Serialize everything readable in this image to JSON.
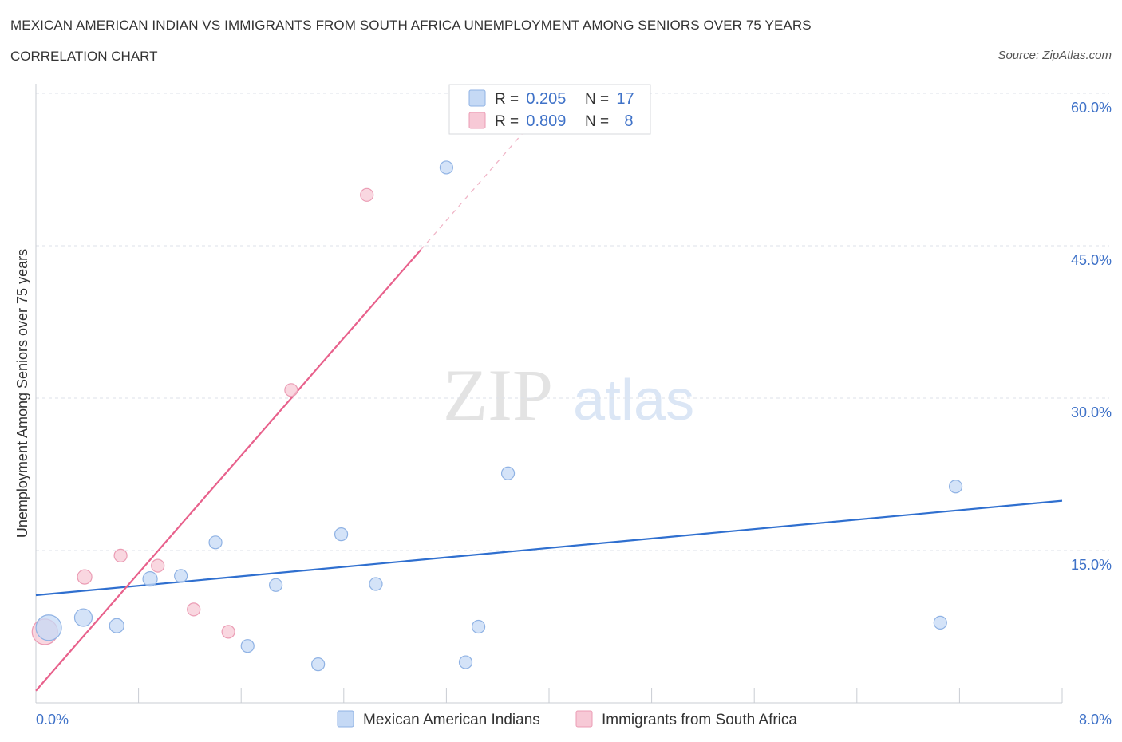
{
  "title": "MEXICAN AMERICAN INDIAN VS IMMIGRANTS FROM SOUTH AFRICA UNEMPLOYMENT AMONG SENIORS OVER 75 YEARS",
  "subtitle": "CORRELATION CHART",
  "source": "Source: ZipAtlas.com",
  "watermark": {
    "zip": "ZIP",
    "atlas": "atlas"
  },
  "colors": {
    "blue_fill": "#c5d9f5",
    "blue_stroke": "#8fb2e4",
    "blue_line": "#2f6fcf",
    "pink_fill": "#f7c9d6",
    "pink_stroke": "#eb9cb4",
    "pink_line": "#e8618c",
    "axis_text": "#3f72c8",
    "grid": "#dde1e8"
  },
  "legend": {
    "series1": {
      "r_label": "R = ",
      "r_value": "0.205",
      "n_label": "N = ",
      "n_value": "17"
    },
    "series2": {
      "r_label": "R = ",
      "r_value": "0.809",
      "n_label": "N = ",
      "n_value": "8"
    }
  },
  "chart_data": {
    "type": "scatter",
    "title": "MEXICAN AMERICAN INDIAN VS IMMIGRANTS FROM SOUTH AFRICA UNEMPLOYMENT AMONG SENIORS OVER 75 YEARS",
    "xlabel": "",
    "ylabel": "Unemployment Among Seniors over 75 years",
    "xlim": [
      0,
      8
    ],
    "ylim": [
      0,
      60
    ],
    "x_tick_labels": [
      "0.0%",
      "8.0%"
    ],
    "y_tick_labels": [
      "15.0%",
      "30.0%",
      "45.0%",
      "60.0%"
    ],
    "y_ticks": [
      15,
      30,
      45,
      60
    ],
    "series": [
      {
        "name": "Mexican American Indians",
        "color": "#8fb2e4",
        "points": [
          {
            "x": 0.1,
            "y": 7.4,
            "size": 16
          },
          {
            "x": 0.37,
            "y": 8.4,
            "size": 11
          },
          {
            "x": 0.63,
            "y": 7.6,
            "size": 9
          },
          {
            "x": 0.89,
            "y": 12.2,
            "size": 9
          },
          {
            "x": 1.13,
            "y": 12.5,
            "size": 8
          },
          {
            "x": 1.4,
            "y": 15.8,
            "size": 8
          },
          {
            "x": 1.65,
            "y": 5.6,
            "size": 8
          },
          {
            "x": 1.87,
            "y": 11.6,
            "size": 8
          },
          {
            "x": 2.2,
            "y": 3.8,
            "size": 8
          },
          {
            "x": 2.38,
            "y": 16.6,
            "size": 8
          },
          {
            "x": 2.65,
            "y": 11.7,
            "size": 8
          },
          {
            "x": 3.2,
            "y": 52.7,
            "size": 8
          },
          {
            "x": 3.35,
            "y": 4.0,
            "size": 8
          },
          {
            "x": 3.45,
            "y": 7.5,
            "size": 8
          },
          {
            "x": 3.68,
            "y": 22.6,
            "size": 8
          },
          {
            "x": 7.05,
            "y": 7.9,
            "size": 8
          },
          {
            "x": 7.17,
            "y": 21.3,
            "size": 8
          }
        ],
        "trend": {
          "x1": 0.0,
          "y1": 10.6,
          "x2": 8.0,
          "y2": 19.9
        }
      },
      {
        "name": "Immigrants from South Africa",
        "color": "#eb9cb4",
        "points": [
          {
            "x": 0.07,
            "y": 7.0,
            "size": 16
          },
          {
            "x": 0.38,
            "y": 12.4,
            "size": 9
          },
          {
            "x": 0.66,
            "y": 14.5,
            "size": 8
          },
          {
            "x": 0.95,
            "y": 13.5,
            "size": 8
          },
          {
            "x": 1.23,
            "y": 9.2,
            "size": 8
          },
          {
            "x": 1.5,
            "y": 7.0,
            "size": 8
          },
          {
            "x": 1.99,
            "y": 30.8,
            "size": 8
          },
          {
            "x": 2.58,
            "y": 50.0,
            "size": 8
          }
        ],
        "trend": {
          "x1": 0.0,
          "y1": 1.2,
          "x2": 3.0,
          "y2": 44.6
        },
        "trend_extension": {
          "x1": 3.0,
          "y1": 44.6,
          "x2": 3.81,
          "y2": 56.3
        }
      }
    ],
    "legend_position": "top-center"
  }
}
